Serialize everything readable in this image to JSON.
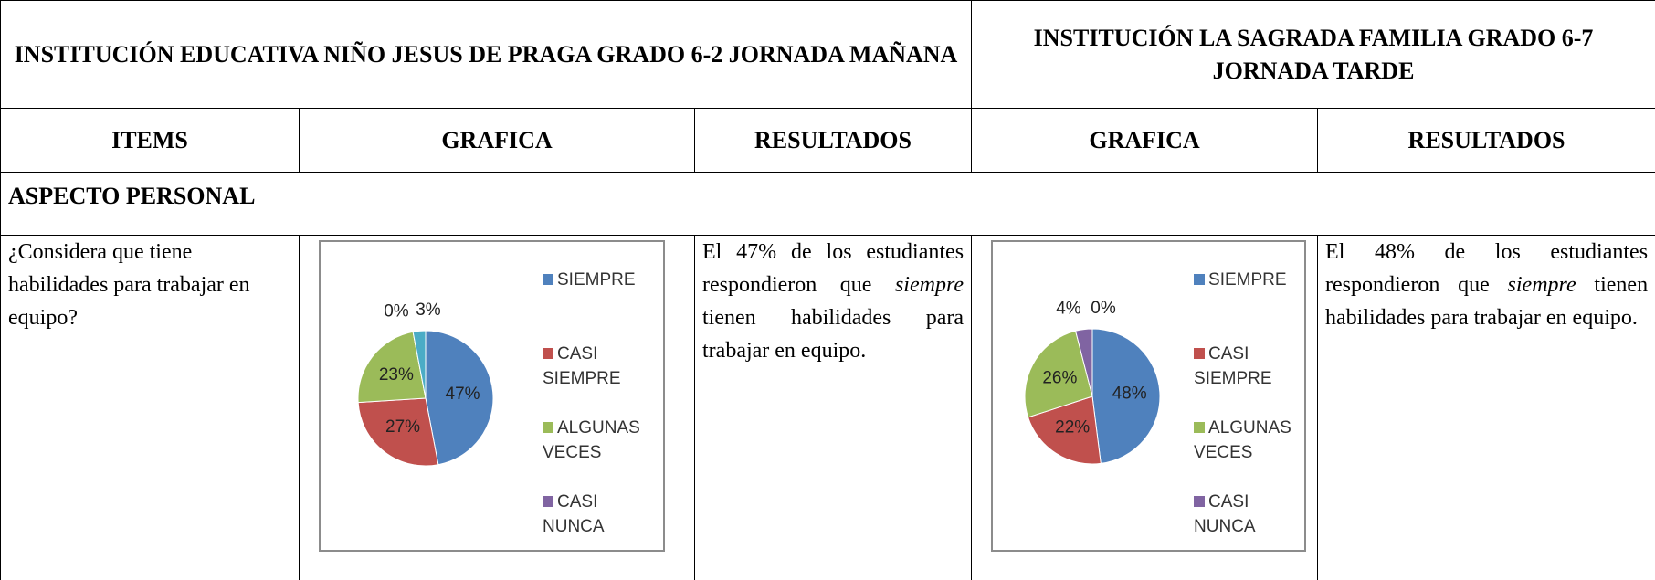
{
  "table": {
    "header_left": "INSTITUCIÓN EDUCATIVA NIÑO JESUS DE PRAGA GRADO 6-2 JORNADA MAÑANA",
    "header_right": "INSTITUCIÓN LA SAGRADA FAMILIA GRADO 6-7 JORNADA TARDE",
    "columns": [
      "ITEMS",
      "GRAFICA",
      "RESULTADOS",
      "GRAFICA",
      "RESULTADOS"
    ],
    "section": "ASPECTO PERSONAL",
    "item": "¿Considera que tiene habilidades para trabajar en equipo?",
    "results_left": {
      "before": "El 47% de los estudiantes respondieron que",
      "emphasis": "siempre",
      "after": "tienen habilidades para trabajar en equipo."
    },
    "results_right": {
      "before": "El 48% de los estudiantes respondieron que",
      "emphasis": "siempre",
      "after": "tienen habilidades para trabajar en equipo."
    }
  },
  "chart_data": [
    {
      "type": "pie",
      "categories": [
        "SIEMPRE",
        "CASI SIEMPRE",
        "ALGUNAS VECES",
        "CASI NUNCA",
        null
      ],
      "values": [
        47,
        27,
        23,
        0,
        3
      ],
      "value_labels": [
        "47%",
        "27%",
        "23%",
        "0%",
        "3%"
      ],
      "colors": [
        "#4f81bd",
        "#c0504d",
        "#9bbb59",
        "#8064a2",
        "#4bacc6"
      ]
    },
    {
      "type": "pie",
      "categories": [
        "SIEMPRE",
        "CASI SIEMPRE",
        "ALGUNAS VECES",
        "CASI NUNCA",
        null
      ],
      "values": [
        48,
        22,
        26,
        4,
        0
      ],
      "value_labels": [
        "48%",
        "22%",
        "26%",
        "4%",
        "0%"
      ],
      "colors": [
        "#4f81bd",
        "#c0504d",
        "#9bbb59",
        "#8064a2",
        "#4bacc6"
      ]
    }
  ]
}
